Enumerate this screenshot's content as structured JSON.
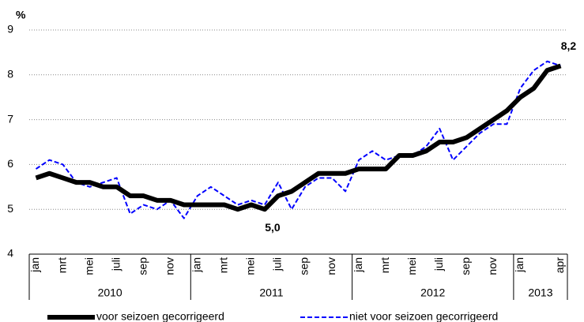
{
  "chart_data": {
    "type": "line",
    "y_unit": "%",
    "categories": [
      "jan",
      null,
      "mrt",
      null,
      "mei",
      null,
      "juli",
      null,
      "sep",
      null,
      "nov",
      null,
      "jan",
      null,
      "mrt",
      null,
      "mei",
      null,
      "juli",
      null,
      "sep",
      null,
      "nov",
      null,
      "jan",
      null,
      "mrt",
      null,
      "mei",
      null,
      "juli",
      null,
      "sep",
      null,
      "nov",
      null,
      "jan",
      null,
      null,
      "apr"
    ],
    "groups": [
      "2010",
      "2011",
      "2012",
      "2013"
    ],
    "series": [
      {
        "name": "voor seizoen gecorrigeerd",
        "color": "#000000",
        "style": "solid",
        "values": [
          5.7,
          5.8,
          5.7,
          5.6,
          5.6,
          5.5,
          5.5,
          5.3,
          5.3,
          5.2,
          5.2,
          5.1,
          5.1,
          5.1,
          5.1,
          5.0,
          5.1,
          5.0,
          5.3,
          5.4,
          5.6,
          5.8,
          5.8,
          5.8,
          5.9,
          5.9,
          5.9,
          6.2,
          6.2,
          6.3,
          6.5,
          6.5,
          6.6,
          6.8,
          7.0,
          7.2,
          7.5,
          7.7,
          8.1,
          8.2
        ],
        "value_labels": [
          null,
          null,
          null,
          null,
          null,
          null,
          null,
          null,
          null,
          null,
          null,
          null,
          null,
          null,
          null,
          null,
          null,
          "5,0",
          null,
          null,
          null,
          null,
          null,
          null,
          null,
          null,
          null,
          null,
          null,
          null,
          null,
          null,
          null,
          null,
          null,
          null,
          null,
          null,
          null,
          "8,2"
        ]
      },
      {
        "name": "niet voor seizoen gecorrigeerd",
        "color": "#0000ff",
        "style": "dashed",
        "values": [
          5.9,
          6.1,
          6.0,
          5.6,
          5.5,
          5.6,
          5.7,
          4.9,
          5.1,
          5.0,
          5.2,
          4.8,
          5.3,
          5.5,
          5.3,
          5.1,
          5.2,
          5.1,
          5.6,
          5.0,
          5.5,
          5.7,
          5.7,
          5.4,
          6.1,
          6.3,
          6.1,
          6.2,
          6.2,
          6.4,
          6.8,
          6.1,
          6.4,
          6.7,
          6.9,
          6.9,
          7.7,
          8.1,
          8.3,
          8.2
        ]
      }
    ],
    "ylim": [
      4,
      9
    ],
    "yticks": [
      4,
      5,
      6,
      7,
      8,
      9
    ],
    "grid": true
  }
}
